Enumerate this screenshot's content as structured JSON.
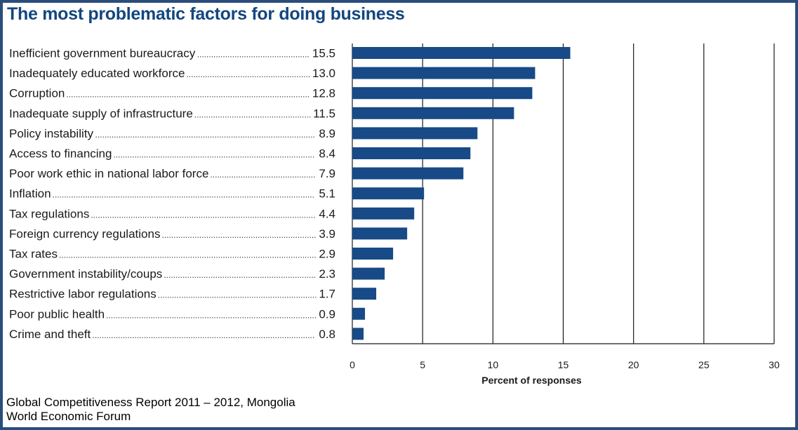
{
  "chart_data": {
    "type": "bar",
    "orientation": "horizontal",
    "title": "The most problematic factors for doing business",
    "xlabel": "Percent of responses",
    "ylabel": "",
    "xlim": [
      0,
      30
    ],
    "xticks": [
      0,
      5,
      10,
      15,
      20,
      25,
      30
    ],
    "grid": "vertical",
    "bar_color": "#174a87",
    "categories": [
      "Inefficient government bureaucracy",
      "Inadequately educated workforce",
      "Corruption",
      "Inadequate supply of infrastructure",
      "Policy instability",
      "Access to financing",
      "Poor work ethic in national labor force",
      "Inflation",
      "Tax regulations",
      "Foreign currency regulations",
      "Tax rates",
      "Government instability/coups",
      "Restrictive labor regulations",
      "Poor public health",
      "Crime and theft"
    ],
    "values": [
      15.5,
      13.0,
      12.8,
      11.5,
      8.9,
      8.4,
      7.9,
      5.1,
      4.4,
      3.9,
      2.9,
      2.3,
      1.7,
      0.9,
      0.8
    ],
    "value_labels": [
      "15.5",
      "13.0",
      "12.8",
      "11.5",
      "8.9",
      "8.4",
      "7.9",
      "5.1",
      "4.4",
      "3.9",
      "2.9",
      "2.3",
      "1.7",
      "0.9",
      "0.8"
    ]
  },
  "source": {
    "line1": "Global Competitiveness Report 2011 – 2012, Mongolia",
    "line2": "World Economic Forum"
  },
  "colors": {
    "title": "#13467f",
    "border": "#2a4d7c"
  }
}
